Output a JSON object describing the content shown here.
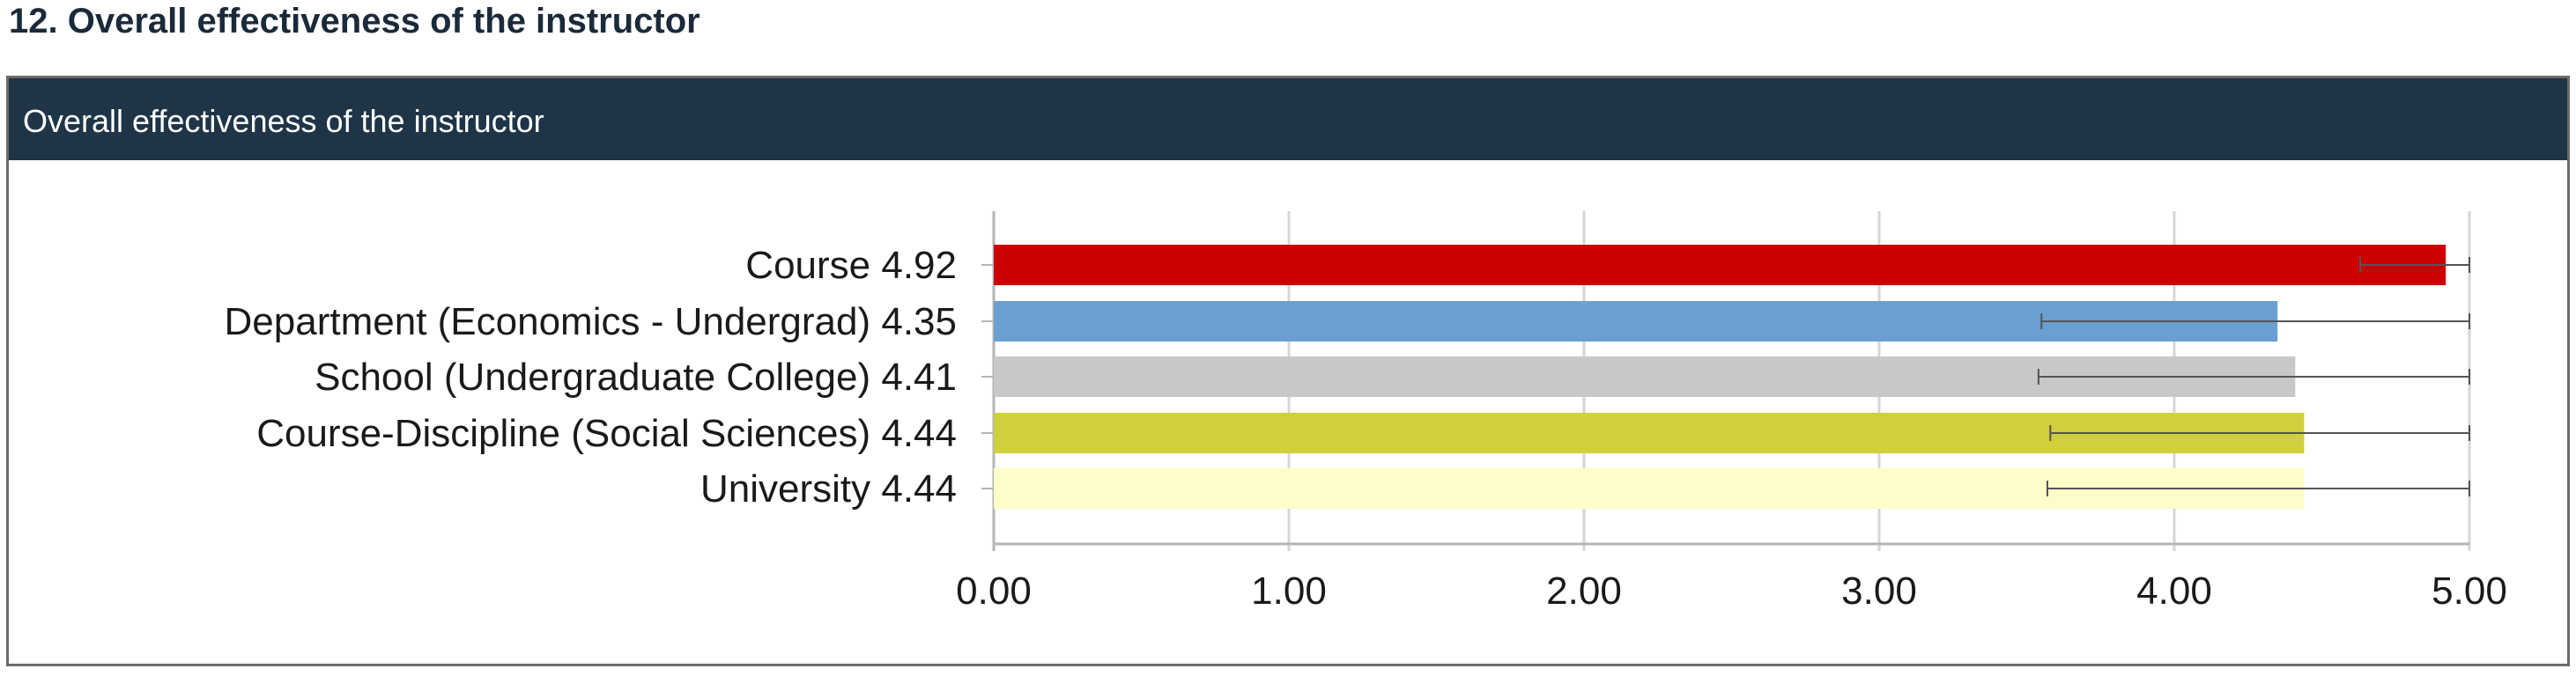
{
  "section_title": "12. Overall effectiveness of the instructor",
  "panel_title": "Overall effectiveness of the instructor",
  "colors": {
    "header_bg": "#1f3547",
    "grid": "#d6d6d6",
    "axis": "#b5b5b5",
    "error_bar": "#555555"
  },
  "chart_data": {
    "type": "bar",
    "orientation": "horizontal",
    "title": "Overall effectiveness of the instructor",
    "categories": [
      "Course 4.92",
      "Department (Economics - Undergrad) 4.35",
      "School (Undergraduate College) 4.41",
      "Course-Discipline (Social Sciences) 4.44",
      "University 4.44"
    ],
    "values": [
      4.92,
      4.35,
      4.41,
      4.44,
      4.44
    ],
    "error_low": [
      4.63,
      3.55,
      3.54,
      3.58,
      3.57
    ],
    "error_high": [
      5.0,
      5.0,
      5.0,
      5.0,
      5.0
    ],
    "bar_colors": [
      "#cc0000",
      "#6b9ed1",
      "#c8c8c8",
      "#d0cf3c",
      "#fdfdc9"
    ],
    "xlim": [
      0,
      5
    ],
    "xticks": [
      "0.00",
      "1.00",
      "2.00",
      "3.00",
      "4.00",
      "5.00"
    ],
    "grid": true,
    "xlabel": "",
    "ylabel": ""
  }
}
